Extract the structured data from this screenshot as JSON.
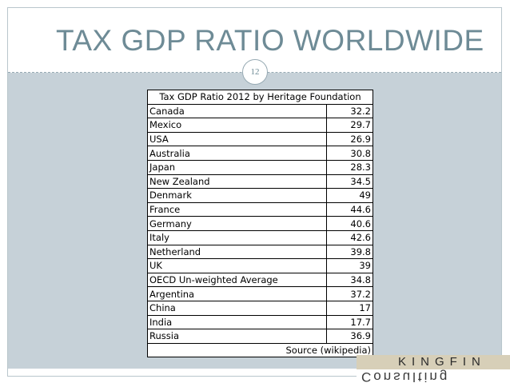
{
  "slide": {
    "title": "TAX GDP RATIO WORLDWIDE",
    "page_number": "12"
  },
  "table": {
    "header": "Tax GDP Ratio 2012 by Heritage Foundation",
    "rows": [
      {
        "country": "Canada",
        "value": "32.2"
      },
      {
        "country": "Mexico",
        "value": "29.7"
      },
      {
        "country": "USA",
        "value": "26.9"
      },
      {
        "country": "Australia",
        "value": "30.8"
      },
      {
        "country": "Japan",
        "value": "28.3"
      },
      {
        "country": "New Zealand",
        "value": "34.5"
      },
      {
        "country": "Denmark",
        "value": "49"
      },
      {
        "country": "France",
        "value": "44.6"
      },
      {
        "country": "Germany",
        "value": "40.6"
      },
      {
        "country": "Italy",
        "value": "42.6"
      },
      {
        "country": "Netherland",
        "value": "39.8"
      },
      {
        "country": "UK",
        "value": "39"
      },
      {
        "country": "OECD Un-weighted Average",
        "value": "34.8"
      },
      {
        "country": "Argentina",
        "value": "37.2"
      },
      {
        "country": "China",
        "value": "17"
      },
      {
        "country": "India",
        "value": "17.7"
      },
      {
        "country": "Russia",
        "value": "36.9"
      }
    ],
    "source": "Source (wikipedia)"
  },
  "logo": {
    "line1": "KINGFIN",
    "line2": "Consulting"
  },
  "colors": {
    "title": "#6e8b96",
    "content_background": "#c6d1d8",
    "frame": "#b9c6cc"
  }
}
